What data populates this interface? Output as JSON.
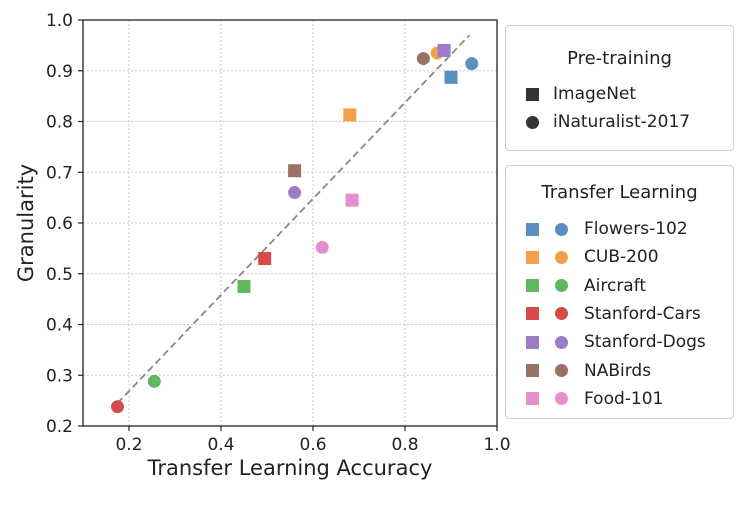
{
  "chart_data": {
    "type": "scatter",
    "xlabel": "Transfer Learning Accuracy",
    "ylabel": "Granularity",
    "xlim": [
      0.1,
      1.0
    ],
    "ylim": [
      0.2,
      1.0
    ],
    "xticks": [
      "0.2",
      "0.4",
      "0.6",
      "0.8",
      "1.0"
    ],
    "yticks": [
      "0.2",
      "0.3",
      "0.4",
      "0.5",
      "0.6",
      "0.7",
      "0.8",
      "0.9",
      "1.0"
    ],
    "grid": true,
    "trend_line": {
      "style": "dashed",
      "x": [
        0.175,
        0.94
      ],
      "y": [
        0.245,
        0.97
      ]
    },
    "series": [
      {
        "name": "Flowers-102",
        "color": "#5b8fc2",
        "imagenet": {
          "x": 0.9,
          "y": 0.887
        },
        "inaturalist": {
          "x": 0.945,
          "y": 0.914
        }
      },
      {
        "name": "CUB-200",
        "color": "#f3a04a",
        "imagenet": {
          "x": 0.68,
          "y": 0.813
        },
        "inaturalist": {
          "x": 0.87,
          "y": 0.935
        }
      },
      {
        "name": "Aircraft",
        "color": "#61b861",
        "imagenet": {
          "x": 0.45,
          "y": 0.475
        },
        "inaturalist": {
          "x": 0.255,
          "y": 0.288
        }
      },
      {
        "name": "Stanford-Cars",
        "color": "#d64a4a",
        "imagenet": {
          "x": 0.495,
          "y": 0.53
        },
        "inaturalist": {
          "x": 0.175,
          "y": 0.238
        }
      },
      {
        "name": "Stanford-Dogs",
        "color": "#9f7ac6",
        "imagenet": {
          "x": 0.885,
          "y": 0.94
        },
        "inaturalist": {
          "x": 0.56,
          "y": 0.66
        }
      },
      {
        "name": "NABirds",
        "color": "#9a7165",
        "imagenet": {
          "x": 0.56,
          "y": 0.703
        },
        "inaturalist": {
          "x": 0.84,
          "y": 0.924
        }
      },
      {
        "name": "Food-101",
        "color": "#e590cc",
        "imagenet": {
          "x": 0.685,
          "y": 0.645
        },
        "inaturalist": {
          "x": 0.62,
          "y": 0.552
        }
      }
    ]
  },
  "legend_pretraining": {
    "title": "Pre-training",
    "items": [
      {
        "label": "ImageNet",
        "marker": "square"
      },
      {
        "label": "iNaturalist-2017",
        "marker": "circle"
      }
    ]
  },
  "legend_transfer": {
    "title": "Transfer Learning"
  }
}
